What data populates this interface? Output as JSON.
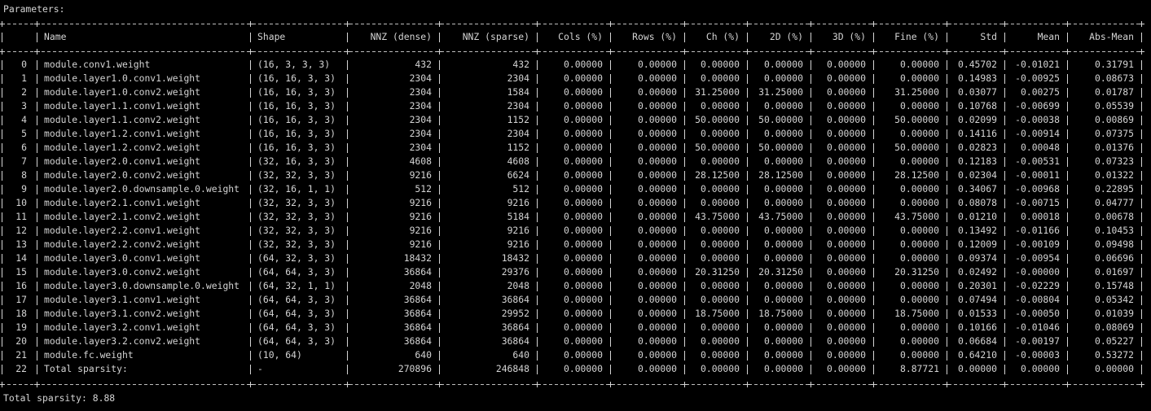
{
  "title": "Parameters:",
  "footer": "Total sparsity: 8.88",
  "colors": {
    "background": "#000000",
    "text": "#d4d4d4"
  },
  "table": {
    "headers": [
      "",
      "Name",
      "Shape",
      "NNZ (dense)",
      "NNZ (sparse)",
      "Cols (%)",
      "Rows (%)",
      "Ch (%)",
      "2D (%)",
      "3D (%)",
      "Fine (%)",
      "Std",
      "Mean",
      "Abs-Mean"
    ],
    "rows": [
      [
        "0",
        "module.conv1.weight",
        "(16, 3, 3, 3)",
        "432",
        "432",
        "0.00000",
        "0.00000",
        "0.00000",
        "0.00000",
        "0.00000",
        "0.00000",
        "0.45702",
        "-0.01021",
        "0.31791"
      ],
      [
        "1",
        "module.layer1.0.conv1.weight",
        "(16, 16, 3, 3)",
        "2304",
        "2304",
        "0.00000",
        "0.00000",
        "0.00000",
        "0.00000",
        "0.00000",
        "0.00000",
        "0.14983",
        "-0.00925",
        "0.08673"
      ],
      [
        "2",
        "module.layer1.0.conv2.weight",
        "(16, 16, 3, 3)",
        "2304",
        "1584",
        "0.00000",
        "0.00000",
        "31.25000",
        "31.25000",
        "0.00000",
        "31.25000",
        "0.03077",
        "0.00275",
        "0.01787"
      ],
      [
        "3",
        "module.layer1.1.conv1.weight",
        "(16, 16, 3, 3)",
        "2304",
        "2304",
        "0.00000",
        "0.00000",
        "0.00000",
        "0.00000",
        "0.00000",
        "0.00000",
        "0.10768",
        "-0.00699",
        "0.05539"
      ],
      [
        "4",
        "module.layer1.1.conv2.weight",
        "(16, 16, 3, 3)",
        "2304",
        "1152",
        "0.00000",
        "0.00000",
        "50.00000",
        "50.00000",
        "0.00000",
        "50.00000",
        "0.02099",
        "-0.00038",
        "0.00869"
      ],
      [
        "5",
        "module.layer1.2.conv1.weight",
        "(16, 16, 3, 3)",
        "2304",
        "2304",
        "0.00000",
        "0.00000",
        "0.00000",
        "0.00000",
        "0.00000",
        "0.00000",
        "0.14116",
        "-0.00914",
        "0.07375"
      ],
      [
        "6",
        "module.layer1.2.conv2.weight",
        "(16, 16, 3, 3)",
        "2304",
        "1152",
        "0.00000",
        "0.00000",
        "50.00000",
        "50.00000",
        "0.00000",
        "50.00000",
        "0.02823",
        "0.00048",
        "0.01376"
      ],
      [
        "7",
        "module.layer2.0.conv1.weight",
        "(32, 16, 3, 3)",
        "4608",
        "4608",
        "0.00000",
        "0.00000",
        "0.00000",
        "0.00000",
        "0.00000",
        "0.00000",
        "0.12183",
        "-0.00531",
        "0.07323"
      ],
      [
        "8",
        "module.layer2.0.conv2.weight",
        "(32, 32, 3, 3)",
        "9216",
        "6624",
        "0.00000",
        "0.00000",
        "28.12500",
        "28.12500",
        "0.00000",
        "28.12500",
        "0.02304",
        "-0.00011",
        "0.01322"
      ],
      [
        "9",
        "module.layer2.0.downsample.0.weight",
        "(32, 16, 1, 1)",
        "512",
        "512",
        "0.00000",
        "0.00000",
        "0.00000",
        "0.00000",
        "0.00000",
        "0.00000",
        "0.34067",
        "-0.00968",
        "0.22895"
      ],
      [
        "10",
        "module.layer2.1.conv1.weight",
        "(32, 32, 3, 3)",
        "9216",
        "9216",
        "0.00000",
        "0.00000",
        "0.00000",
        "0.00000",
        "0.00000",
        "0.00000",
        "0.08078",
        "-0.00715",
        "0.04777"
      ],
      [
        "11",
        "module.layer2.1.conv2.weight",
        "(32, 32, 3, 3)",
        "9216",
        "5184",
        "0.00000",
        "0.00000",
        "43.75000",
        "43.75000",
        "0.00000",
        "43.75000",
        "0.01210",
        "0.00018",
        "0.00678"
      ],
      [
        "12",
        "module.layer2.2.conv1.weight",
        "(32, 32, 3, 3)",
        "9216",
        "9216",
        "0.00000",
        "0.00000",
        "0.00000",
        "0.00000",
        "0.00000",
        "0.00000",
        "0.13492",
        "-0.01166",
        "0.10453"
      ],
      [
        "13",
        "module.layer2.2.conv2.weight",
        "(32, 32, 3, 3)",
        "9216",
        "9216",
        "0.00000",
        "0.00000",
        "0.00000",
        "0.00000",
        "0.00000",
        "0.00000",
        "0.12009",
        "-0.00109",
        "0.09498"
      ],
      [
        "14",
        "module.layer3.0.conv1.weight",
        "(64, 32, 3, 3)",
        "18432",
        "18432",
        "0.00000",
        "0.00000",
        "0.00000",
        "0.00000",
        "0.00000",
        "0.00000",
        "0.09374",
        "-0.00954",
        "0.06696"
      ],
      [
        "15",
        "module.layer3.0.conv2.weight",
        "(64, 64, 3, 3)",
        "36864",
        "29376",
        "0.00000",
        "0.00000",
        "20.31250",
        "20.31250",
        "0.00000",
        "20.31250",
        "0.02492",
        "-0.00000",
        "0.01697"
      ],
      [
        "16",
        "module.layer3.0.downsample.0.weight",
        "(64, 32, 1, 1)",
        "2048",
        "2048",
        "0.00000",
        "0.00000",
        "0.00000",
        "0.00000",
        "0.00000",
        "0.00000",
        "0.20301",
        "-0.02229",
        "0.15748"
      ],
      [
        "17",
        "module.layer3.1.conv1.weight",
        "(64, 64, 3, 3)",
        "36864",
        "36864",
        "0.00000",
        "0.00000",
        "0.00000",
        "0.00000",
        "0.00000",
        "0.00000",
        "0.07494",
        "-0.00804",
        "0.05342"
      ],
      [
        "18",
        "module.layer3.1.conv2.weight",
        "(64, 64, 3, 3)",
        "36864",
        "29952",
        "0.00000",
        "0.00000",
        "18.75000",
        "18.75000",
        "0.00000",
        "18.75000",
        "0.01533",
        "-0.00050",
        "0.01039"
      ],
      [
        "19",
        "module.layer3.2.conv1.weight",
        "(64, 64, 3, 3)",
        "36864",
        "36864",
        "0.00000",
        "0.00000",
        "0.00000",
        "0.00000",
        "0.00000",
        "0.00000",
        "0.10166",
        "-0.01046",
        "0.08069"
      ],
      [
        "20",
        "module.layer3.2.conv2.weight",
        "(64, 64, 3, 3)",
        "36864",
        "36864",
        "0.00000",
        "0.00000",
        "0.00000",
        "0.00000",
        "0.00000",
        "0.00000",
        "0.06684",
        "-0.00197",
        "0.05227"
      ],
      [
        "21",
        "module.fc.weight",
        "(10, 64)",
        "640",
        "640",
        "0.00000",
        "0.00000",
        "0.00000",
        "0.00000",
        "0.00000",
        "0.00000",
        "0.64210",
        "-0.00003",
        "0.53272"
      ],
      [
        "22",
        "Total sparsity:",
        "-",
        "270896",
        "246848",
        "0.00000",
        "0.00000",
        "0.00000",
        "0.00000",
        "0.00000",
        "8.87721",
        "0.00000",
        "0.00000",
        "0.00000"
      ]
    ]
  }
}
